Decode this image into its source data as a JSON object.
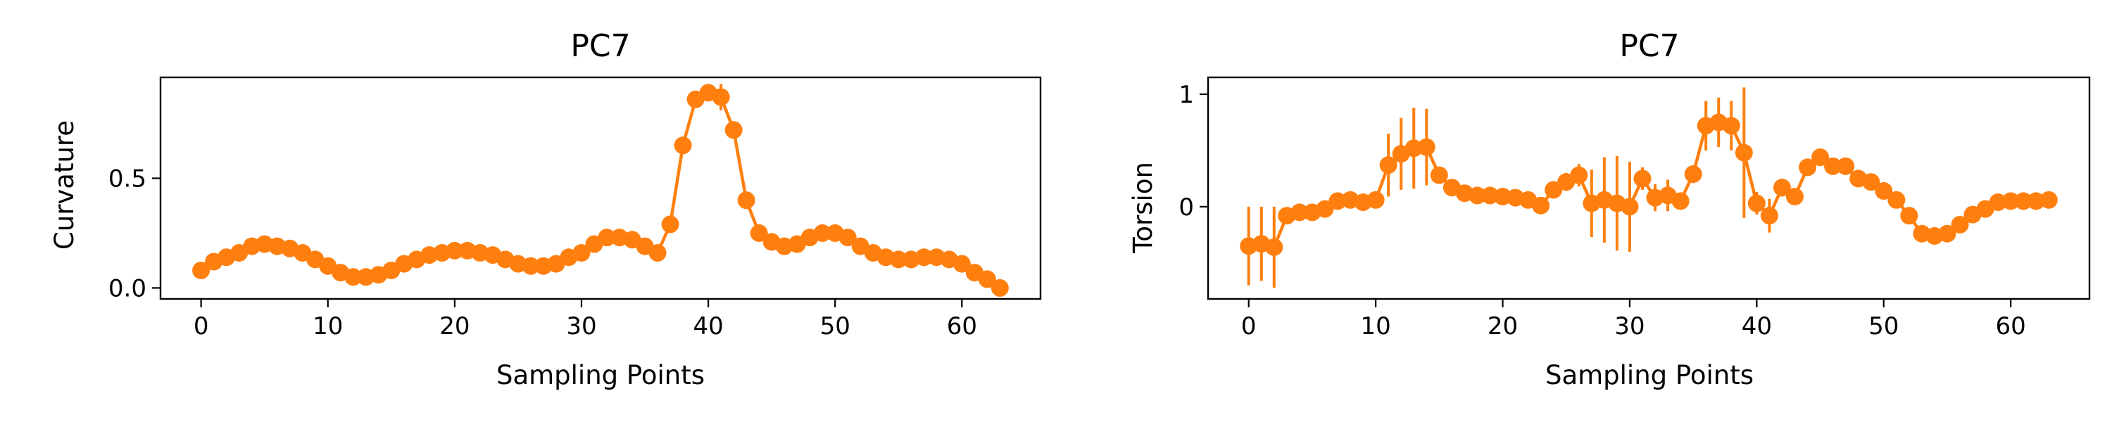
{
  "colors": {
    "series": "#ff7f0e",
    "axes": "#000000",
    "background": "#ffffff"
  },
  "chart_data": [
    {
      "type": "line",
      "title": "PC7",
      "xlabel": "Sampling Points",
      "ylabel": "Curvature",
      "xlim": [
        -3.2,
        66.2
      ],
      "ylim": [
        -0.05,
        0.96
      ],
      "xticks": [
        0,
        10,
        20,
        30,
        40,
        50,
        60
      ],
      "yticks": [
        0.0,
        0.5
      ],
      "ytick_labels": [
        "0.0",
        "0.5"
      ],
      "grid": false,
      "marker": "circle",
      "x": [
        0,
        1,
        2,
        3,
        4,
        5,
        6,
        7,
        8,
        9,
        10,
        11,
        12,
        13,
        14,
        15,
        16,
        17,
        18,
        19,
        20,
        21,
        22,
        23,
        24,
        25,
        26,
        27,
        28,
        29,
        30,
        31,
        32,
        33,
        34,
        35,
        36,
        37,
        38,
        39,
        40,
        41,
        42,
        43,
        44,
        45,
        46,
        47,
        48,
        49,
        50,
        51,
        52,
        53,
        54,
        55,
        56,
        57,
        58,
        59,
        60,
        61,
        62,
        63
      ],
      "y": [
        0.08,
        0.12,
        0.14,
        0.16,
        0.19,
        0.2,
        0.19,
        0.18,
        0.16,
        0.13,
        0.1,
        0.07,
        0.05,
        0.05,
        0.06,
        0.08,
        0.11,
        0.13,
        0.15,
        0.16,
        0.17,
        0.17,
        0.16,
        0.15,
        0.13,
        0.11,
        0.1,
        0.1,
        0.11,
        0.14,
        0.16,
        0.2,
        0.23,
        0.23,
        0.22,
        0.19,
        0.16,
        0.29,
        0.65,
        0.86,
        0.89,
        0.87,
        0.72,
        0.4,
        0.25,
        0.21,
        0.19,
        0.2,
        0.23,
        0.25,
        0.25,
        0.23,
        0.19,
        0.16,
        0.14,
        0.13,
        0.13,
        0.14,
        0.14,
        0.13,
        0.11,
        0.07,
        0.04,
        0.0
      ],
      "yerr": [
        0.01,
        0.01,
        0.01,
        0.01,
        0.01,
        0.01,
        0.01,
        0.01,
        0.01,
        0.01,
        0.01,
        0.01,
        0.01,
        0.01,
        0.01,
        0.01,
        0.01,
        0.01,
        0.01,
        0.01,
        0.01,
        0.01,
        0.01,
        0.01,
        0.01,
        0.01,
        0.01,
        0.01,
        0.01,
        0.01,
        0.01,
        0.01,
        0.01,
        0.01,
        0.01,
        0.01,
        0.02,
        0.03,
        0.04,
        0.03,
        0.03,
        0.06,
        0.04,
        0.03,
        0.02,
        0.02,
        0.02,
        0.01,
        0.01,
        0.01,
        0.01,
        0.01,
        0.01,
        0.01,
        0.01,
        0.01,
        0.01,
        0.01,
        0.01,
        0.01,
        0.01,
        0.01,
        0.01,
        0.01
      ]
    },
    {
      "type": "line",
      "title": "PC7",
      "xlabel": "Sampling Points",
      "ylabel": "Torsion",
      "xlim": [
        -3.2,
        66.2
      ],
      "ylim": [
        -0.82,
        1.15
      ],
      "xticks": [
        0,
        10,
        20,
        30,
        40,
        50,
        60
      ],
      "yticks": [
        0,
        1
      ],
      "ytick_labels": [
        "0",
        "1"
      ],
      "grid": false,
      "marker": "circle",
      "x": [
        0,
        1,
        2,
        3,
        4,
        5,
        6,
        7,
        8,
        9,
        10,
        11,
        12,
        13,
        14,
        15,
        16,
        17,
        18,
        19,
        20,
        21,
        22,
        23,
        24,
        25,
        26,
        27,
        28,
        29,
        30,
        31,
        32,
        33,
        34,
        35,
        36,
        37,
        38,
        39,
        40,
        41,
        42,
        43,
        44,
        45,
        46,
        47,
        48,
        49,
        50,
        51,
        52,
        53,
        54,
        55,
        56,
        57,
        58,
        59,
        60,
        61,
        62,
        63
      ],
      "y": [
        -0.35,
        -0.33,
        -0.36,
        -0.08,
        -0.05,
        -0.05,
        -0.02,
        0.05,
        0.06,
        0.04,
        0.06,
        0.37,
        0.47,
        0.52,
        0.53,
        0.28,
        0.17,
        0.12,
        0.1,
        0.1,
        0.09,
        0.08,
        0.06,
        0.01,
        0.15,
        0.22,
        0.28,
        0.03,
        0.06,
        0.03,
        0.0,
        0.25,
        0.08,
        0.1,
        0.05,
        0.29,
        0.72,
        0.75,
        0.72,
        0.48,
        0.03,
        -0.08,
        0.17,
        0.09,
        0.35,
        0.44,
        0.36,
        0.36,
        0.25,
        0.22,
        0.14,
        0.06,
        -0.08,
        -0.24,
        -0.26,
        -0.24,
        -0.16,
        -0.07,
        -0.02,
        0.04,
        0.05,
        0.05,
        0.05,
        0.06
      ],
      "yerr": [
        0.35,
        0.33,
        0.36,
        0.05,
        0.04,
        0.04,
        0.04,
        0.03,
        0.03,
        0.03,
        0.05,
        0.28,
        0.32,
        0.36,
        0.34,
        0.06,
        0.05,
        0.04,
        0.03,
        0.03,
        0.03,
        0.03,
        0.03,
        0.04,
        0.07,
        0.08,
        0.1,
        0.3,
        0.38,
        0.42,
        0.4,
        0.1,
        0.12,
        0.14,
        0.07,
        0.08,
        0.22,
        0.22,
        0.22,
        0.58,
        0.1,
        0.15,
        0.08,
        0.05,
        0.05,
        0.04,
        0.04,
        0.04,
        0.04,
        0.03,
        0.04,
        0.04,
        0.04,
        0.04,
        0.04,
        0.04,
        0.05,
        0.05,
        0.06,
        0.05,
        0.04,
        0.04,
        0.04,
        0.04
      ]
    }
  ]
}
